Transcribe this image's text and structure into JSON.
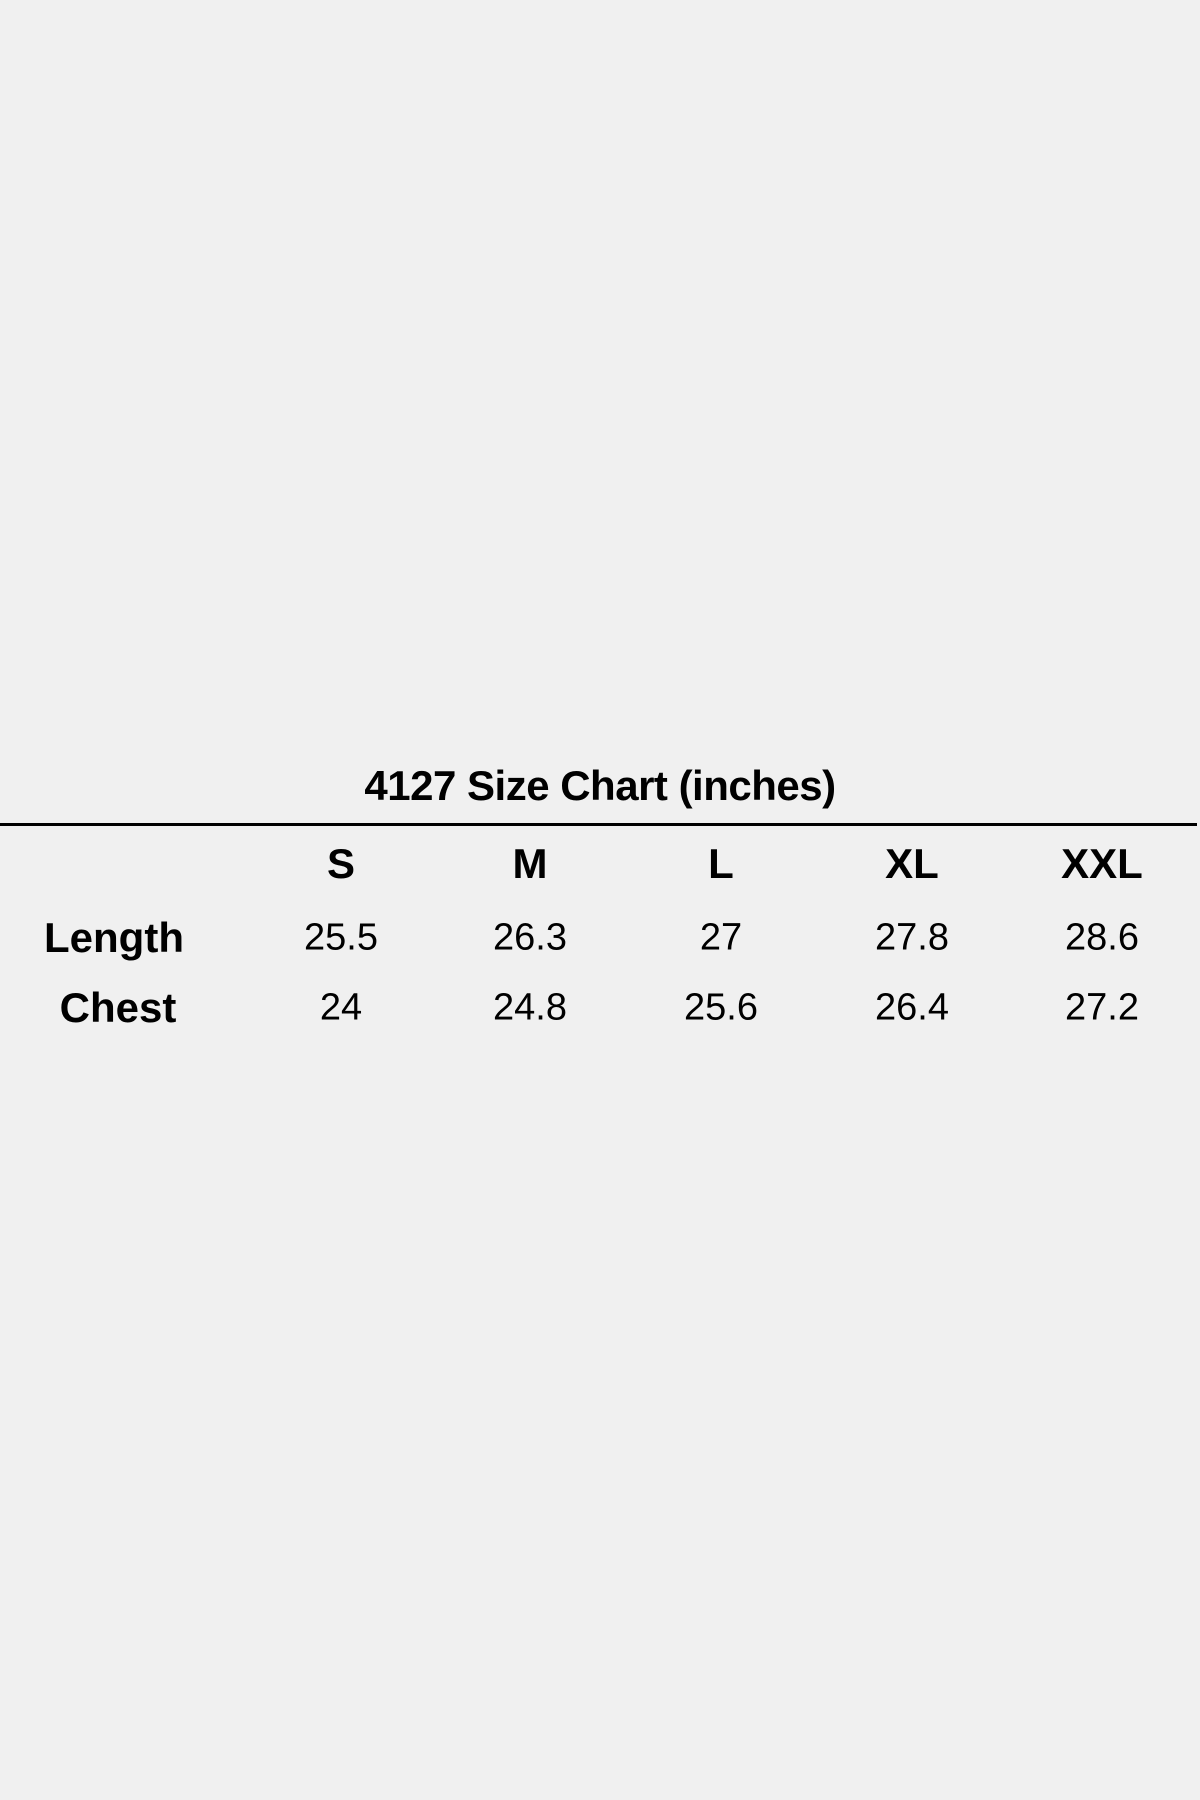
{
  "title": "4127 Size Chart (inches)",
  "table": {
    "columns": [
      "S",
      "M",
      "L",
      "XL",
      "XXL"
    ],
    "rows": [
      {
        "label": "Length",
        "values": [
          "25.5",
          "26.3",
          "27",
          "27.8",
          "28.6"
        ]
      },
      {
        "label": "Chest",
        "values": [
          "24",
          "24.8",
          "25.6",
          "26.4",
          "27.2"
        ]
      }
    ]
  }
}
